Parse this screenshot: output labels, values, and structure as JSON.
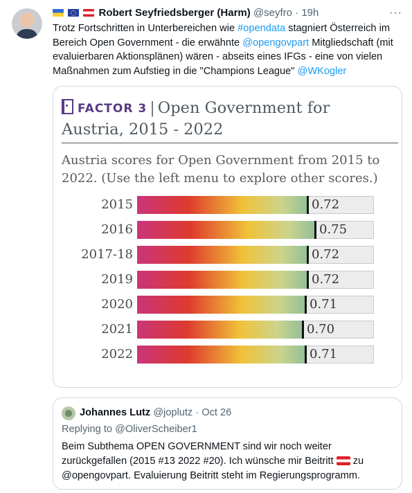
{
  "tweet": {
    "author_name": "Robert Seyfriedsberger (Harm)",
    "handle": "@seyfro",
    "separator": "·",
    "time": "19h",
    "text_parts": [
      {
        "text": "Trotz Fortschritten in Unterbereichen wie ",
        "link": false
      },
      {
        "text": "#opendata",
        "link": true
      },
      {
        "text": " stagniert Österreich im Bereich Open Government - die erwähnte ",
        "link": false
      },
      {
        "text": "@opengovpart",
        "link": true
      },
      {
        "text": " Mitgliedschaft (mit evaluierbaren Aktionsplänen) wären - abseits eines IFGs - eine von vielen Maßnahmen zum Aufstieg in die \"Champions League\" ",
        "link": false
      },
      {
        "text": "@WKogler",
        "link": true
      }
    ]
  },
  "card": {
    "factor_label": "FACTOR 3",
    "title_line1": "Open Government for",
    "title_line2": "Austria, 2015 - 2022",
    "subtitle": "Austria scores for Open Government from 2015 to 2022. (Use the left menu to explore other scores.)"
  },
  "chart_data": {
    "type": "bar",
    "categories": [
      "2015",
      "2016",
      "2017-18",
      "2019",
      "2020",
      "2021",
      "2022"
    ],
    "values": [
      0.72,
      0.75,
      0.72,
      0.72,
      0.71,
      0.7,
      0.71
    ],
    "labels": [
      "0.72",
      "0.75",
      "0.72",
      "0.72",
      "0.71",
      "0.70",
      "0.71"
    ],
    "ylim": [
      0,
      1
    ],
    "colors": {
      "gradient_start": "#c9357a",
      "gradient_red": "#de3a2e",
      "gradient_yellow": "#f0c238",
      "gradient_end": "#93bf98",
      "remainder": "#ececec",
      "marker": "#111111"
    }
  },
  "quote": {
    "author_name": "Johannes Lutz",
    "handle": "@joplutz",
    "separator": "·",
    "date": "Oct 26",
    "replying_to": "Replying to @OliverScheiber1",
    "text_before_flag": "Beim Subthema OPEN GOVERNMENT sind wir noch weiter zurückgefallen (2015 #13 2022 #20). Ich wünsche mir Beitritt ",
    "text_after_flag": " zu @opengovpart. Evaluierung Beitritt steht im Regierungsprogramm."
  }
}
